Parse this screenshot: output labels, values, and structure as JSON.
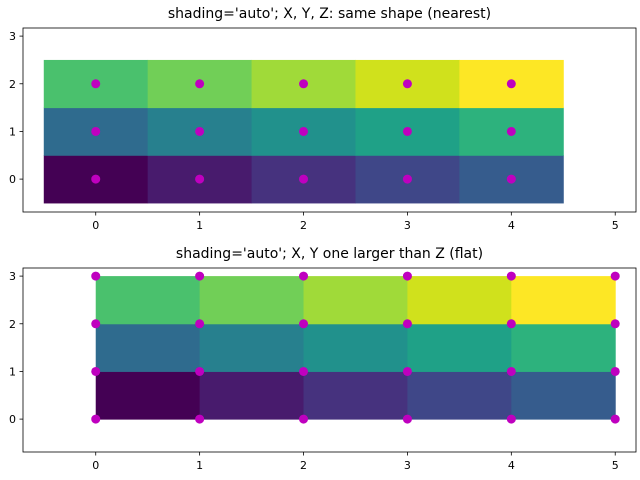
{
  "chart_data": [
    {
      "type": "heatmap",
      "title": "shading='auto'; X, Y, Z: same shape (nearest)",
      "shading": "nearest",
      "x": [
        0,
        1,
        2,
        3,
        4
      ],
      "y": [
        0,
        1,
        2
      ],
      "z": [
        [
          0,
          1,
          2,
          3,
          4
        ],
        [
          5,
          6,
          7,
          8,
          9
        ],
        [
          10,
          11,
          12,
          13,
          14
        ]
      ],
      "points": {
        "x": [
          0,
          1,
          2,
          3,
          4
        ],
        "y": [
          0,
          1,
          2
        ]
      },
      "xlim": [
        -0.7,
        5.2
      ],
      "ylim": [
        -0.69,
        3.17
      ],
      "xticks": [
        "0",
        "1",
        "2",
        "3",
        "4",
        "5"
      ],
      "yticks": [
        "0",
        "1",
        "2",
        "3"
      ],
      "grid": false
    },
    {
      "type": "heatmap",
      "title": "shading='auto'; X, Y one larger than Z (flat)",
      "shading": "flat",
      "x": [
        0,
        1,
        2,
        3,
        4,
        5
      ],
      "y": [
        0,
        1,
        2,
        3
      ],
      "z": [
        [
          0,
          1,
          2,
          3,
          4
        ],
        [
          5,
          6,
          7,
          8,
          9
        ],
        [
          10,
          11,
          12,
          13,
          14
        ]
      ],
      "points": {
        "x": [
          0,
          1,
          2,
          3,
          4,
          5
        ],
        "y": [
          0,
          1,
          2,
          3
        ]
      },
      "xlim": [
        -0.7,
        5.2
      ],
      "ylim": [
        -0.69,
        3.17
      ],
      "xticks": [
        "0",
        "1",
        "2",
        "3",
        "4",
        "5"
      ],
      "yticks": [
        "0",
        "1",
        "2",
        "3"
      ],
      "grid": false
    }
  ],
  "colors": {
    "colormap": "viridis",
    "cells": [
      [
        "#440154",
        "#481b6d",
        "#46327e",
        "#3f4788",
        "#365c8d"
      ],
      [
        "#2f6b8e",
        "#27808e",
        "#21918c",
        "#1fa187",
        "#2db27d"
      ],
      [
        "#4ac16d",
        "#71cf57",
        "#a0da39",
        "#d0e11c",
        "#fde725"
      ]
    ],
    "marker": "#bf00bf"
  }
}
